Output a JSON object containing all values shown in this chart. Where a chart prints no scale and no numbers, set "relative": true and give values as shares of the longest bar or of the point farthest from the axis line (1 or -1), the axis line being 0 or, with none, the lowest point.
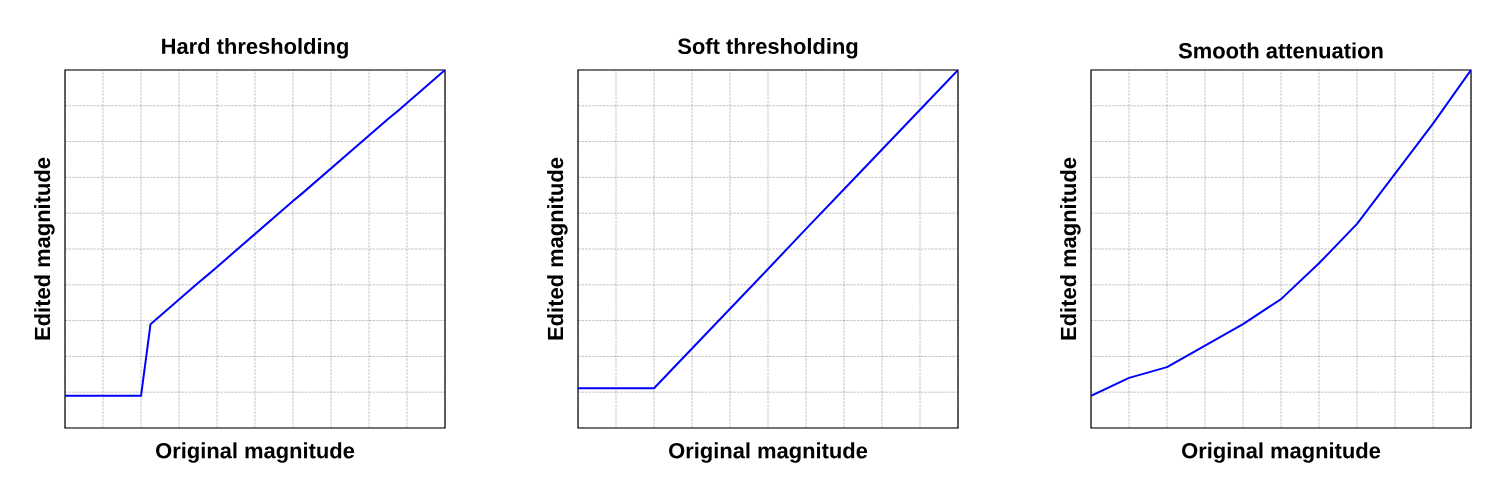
{
  "chart_data": [
    {
      "type": "line",
      "title": "Hard thresholding",
      "xlabel": "Original magnitude",
      "ylabel": "Edited magnitude",
      "relative": true,
      "categories": [
        null,
        null,
        null,
        null,
        null,
        null,
        null,
        null,
        null,
        null,
        null,
        null,
        null,
        null,
        null,
        null,
        null,
        null,
        null,
        null,
        null,
        null,
        null,
        null,
        null,
        null,
        null,
        null,
        null,
        null,
        null,
        null,
        null,
        null,
        null,
        null,
        null,
        null,
        null,
        null,
        null
      ],
      "values": [
        0.09,
        0.09,
        0.09,
        0.09,
        0.09,
        0.09,
        0.09,
        0.09,
        0.09,
        0.29,
        0.313,
        0.336,
        0.359,
        0.382,
        0.405,
        0.427,
        0.45,
        0.473,
        0.496,
        0.519,
        0.542,
        0.565,
        0.588,
        0.611,
        0.634,
        0.656,
        0.679,
        0.702,
        0.725,
        0.748,
        0.771,
        0.794,
        0.817,
        0.84,
        0.863,
        0.885,
        0.908,
        0.931,
        0.954,
        0.977,
        1
      ],
      "color": "#0000ff",
      "grid": true
    },
    {
      "type": "line",
      "title": "Soft thresholding",
      "xlabel": "Original magnitude",
      "ylabel": "Edited magnitude",
      "relative": true,
      "categories": [
        null,
        null,
        null,
        null,
        null,
        null,
        null,
        null,
        null,
        null,
        null
      ],
      "values": [
        0.111,
        0.111,
        0.111,
        0.222,
        0.333,
        0.444,
        0.556,
        0.667,
        0.778,
        0.889,
        1
      ],
      "color": "#0000ff",
      "grid": true
    },
    {
      "type": "line",
      "title": "Smooth attenuation",
      "xlabel": "Original magnitude",
      "ylabel": "Edited magnitude",
      "relative": true,
      "categories": [
        null,
        null,
        null,
        null,
        null,
        null,
        null,
        null,
        null,
        null,
        null
      ],
      "values": [
        0.09,
        0.14,
        0.17,
        0.23,
        0.29,
        0.36,
        0.46,
        0.57,
        0.71,
        0.85,
        1
      ],
      "color": "#0000ff",
      "grid": true
    }
  ]
}
